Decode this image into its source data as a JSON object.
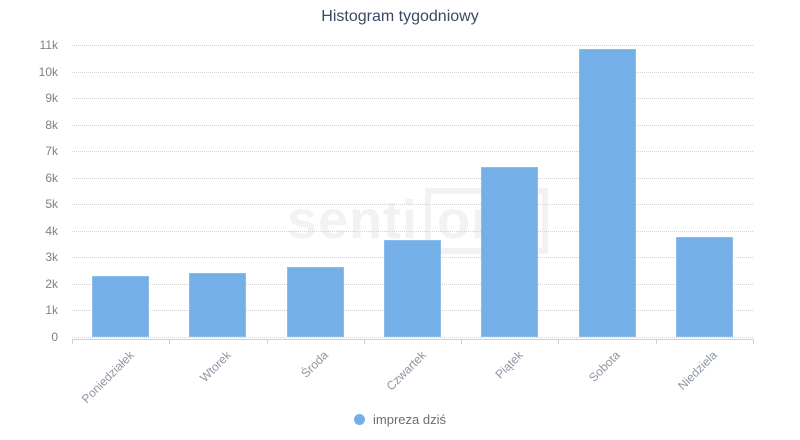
{
  "title": "Histogram tygodniowy",
  "watermark": {
    "part1": "senti",
    "part2": "one"
  },
  "legend": {
    "label": "impreza dziś"
  },
  "colors": {
    "bar": "#74b0e7",
    "title_text": "#3b4a63",
    "axis_label_y": "#78828f",
    "axis_label_x": "#8e96a3",
    "grid": "#d2d2d2",
    "axis_line": "#cfcfcf",
    "legend_text": "#697077",
    "watermark": "#f2f2f2"
  },
  "chart_data": {
    "type": "bar",
    "title": "Histogram tygodniowy",
    "categories": [
      "Poniedziałek",
      "Wtorek",
      "Środa",
      "Czwartek",
      "Piątek",
      "Sobota",
      "Niedziela"
    ],
    "series": [
      {
        "name": "impreza dziś",
        "values": [
          2300,
          2400,
          2650,
          3650,
          6400,
          10850,
          3750
        ]
      }
    ],
    "xlabel": "",
    "ylabel": "",
    "ylim": [
      0,
      11000
    ],
    "ytick_step": 1000,
    "ytick_labels": [
      "0",
      "1k",
      "2k",
      "3k",
      "4k",
      "5k",
      "6k",
      "7k",
      "8k",
      "9k",
      "10k",
      "11k"
    ],
    "grid": "horizontal-dotted",
    "legend_position": "bottom-center",
    "x_labels_rotation": -45
  }
}
